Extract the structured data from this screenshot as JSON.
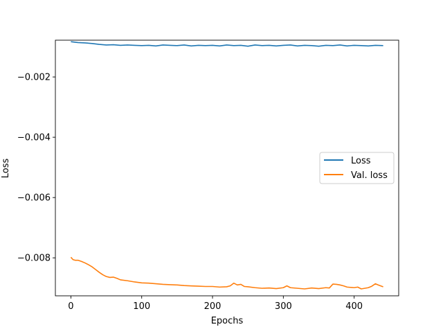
{
  "chart_data": {
    "type": "line",
    "title": "",
    "xlabel": "Epochs",
    "ylabel": "Loss",
    "xlim": [
      -21.9,
      462.9
    ],
    "ylim": [
      -0.00926,
      -0.00078
    ],
    "xticks": [
      0,
      100,
      200,
      300,
      400
    ],
    "xtick_labels": [
      "0",
      "100",
      "200",
      "300",
      "400"
    ],
    "yticks": [
      -0.002,
      -0.004,
      -0.006,
      -0.008
    ],
    "ytick_labels": [
      "−0.002",
      "−0.004",
      "−0.006",
      "−0.008"
    ],
    "grid": false,
    "legend_position": "center-right",
    "series": [
      {
        "name": "Loss",
        "color": "#1f77b4",
        "x": [
          0,
          10,
          20,
          30,
          40,
          50,
          60,
          70,
          80,
          90,
          100,
          110,
          120,
          130,
          140,
          150,
          160,
          170,
          180,
          190,
          200,
          210,
          220,
          230,
          240,
          250,
          260,
          270,
          280,
          290,
          300,
          310,
          320,
          330,
          340,
          350,
          360,
          370,
          380,
          390,
          400,
          410,
          420,
          430,
          441
        ],
        "y": [
          -0.00083,
          -0.00086,
          -0.00087,
          -0.00089,
          -0.00092,
          -0.00094,
          -0.00093,
          -0.00095,
          -0.00094,
          -0.00095,
          -0.00096,
          -0.00095,
          -0.00097,
          -0.00094,
          -0.00095,
          -0.00096,
          -0.00094,
          -0.00097,
          -0.00095,
          -0.00096,
          -0.00095,
          -0.00097,
          -0.00094,
          -0.00096,
          -0.00095,
          -0.00098,
          -0.00094,
          -0.00096,
          -0.00095,
          -0.00097,
          -0.00095,
          -0.00094,
          -0.00097,
          -0.00095,
          -0.00096,
          -0.00098,
          -0.00095,
          -0.00096,
          -0.00094,
          -0.00097,
          -0.00095,
          -0.00096,
          -0.00097,
          -0.00095,
          -0.00096
        ]
      },
      {
        "name": "Val. loss",
        "color": "#ff7f0e",
        "x": [
          0,
          3,
          6,
          10,
          15,
          20,
          25,
          30,
          35,
          40,
          45,
          50,
          55,
          60,
          65,
          70,
          80,
          90,
          100,
          110,
          120,
          130,
          140,
          150,
          160,
          170,
          180,
          190,
          200,
          210,
          220,
          225,
          230,
          235,
          240,
          245,
          250,
          260,
          270,
          280,
          290,
          300,
          305,
          310,
          320,
          330,
          340,
          350,
          360,
          365,
          370,
          375,
          380,
          385,
          390,
          400,
          405,
          410,
          420,
          425,
          430,
          435,
          441
        ],
        "y": [
          -0.00798,
          -0.00806,
          -0.00808,
          -0.00808,
          -0.00812,
          -0.00817,
          -0.00823,
          -0.0083,
          -0.00839,
          -0.00848,
          -0.00856,
          -0.00862,
          -0.00865,
          -0.00864,
          -0.00868,
          -0.00873,
          -0.00876,
          -0.0088,
          -0.00883,
          -0.00884,
          -0.00886,
          -0.00888,
          -0.00889,
          -0.0089,
          -0.00892,
          -0.00893,
          -0.00894,
          -0.00895,
          -0.00895,
          -0.00897,
          -0.00896,
          -0.00893,
          -0.00884,
          -0.0089,
          -0.00888,
          -0.00895,
          -0.00896,
          -0.00899,
          -0.00901,
          -0.009,
          -0.00902,
          -0.00899,
          -0.00893,
          -0.00899,
          -0.00901,
          -0.00903,
          -0.009,
          -0.00902,
          -0.00899,
          -0.009,
          -0.00887,
          -0.00888,
          -0.0089,
          -0.00893,
          -0.00897,
          -0.00899,
          -0.00897,
          -0.00903,
          -0.00899,
          -0.00894,
          -0.00886,
          -0.00891,
          -0.00896
        ]
      }
    ]
  }
}
